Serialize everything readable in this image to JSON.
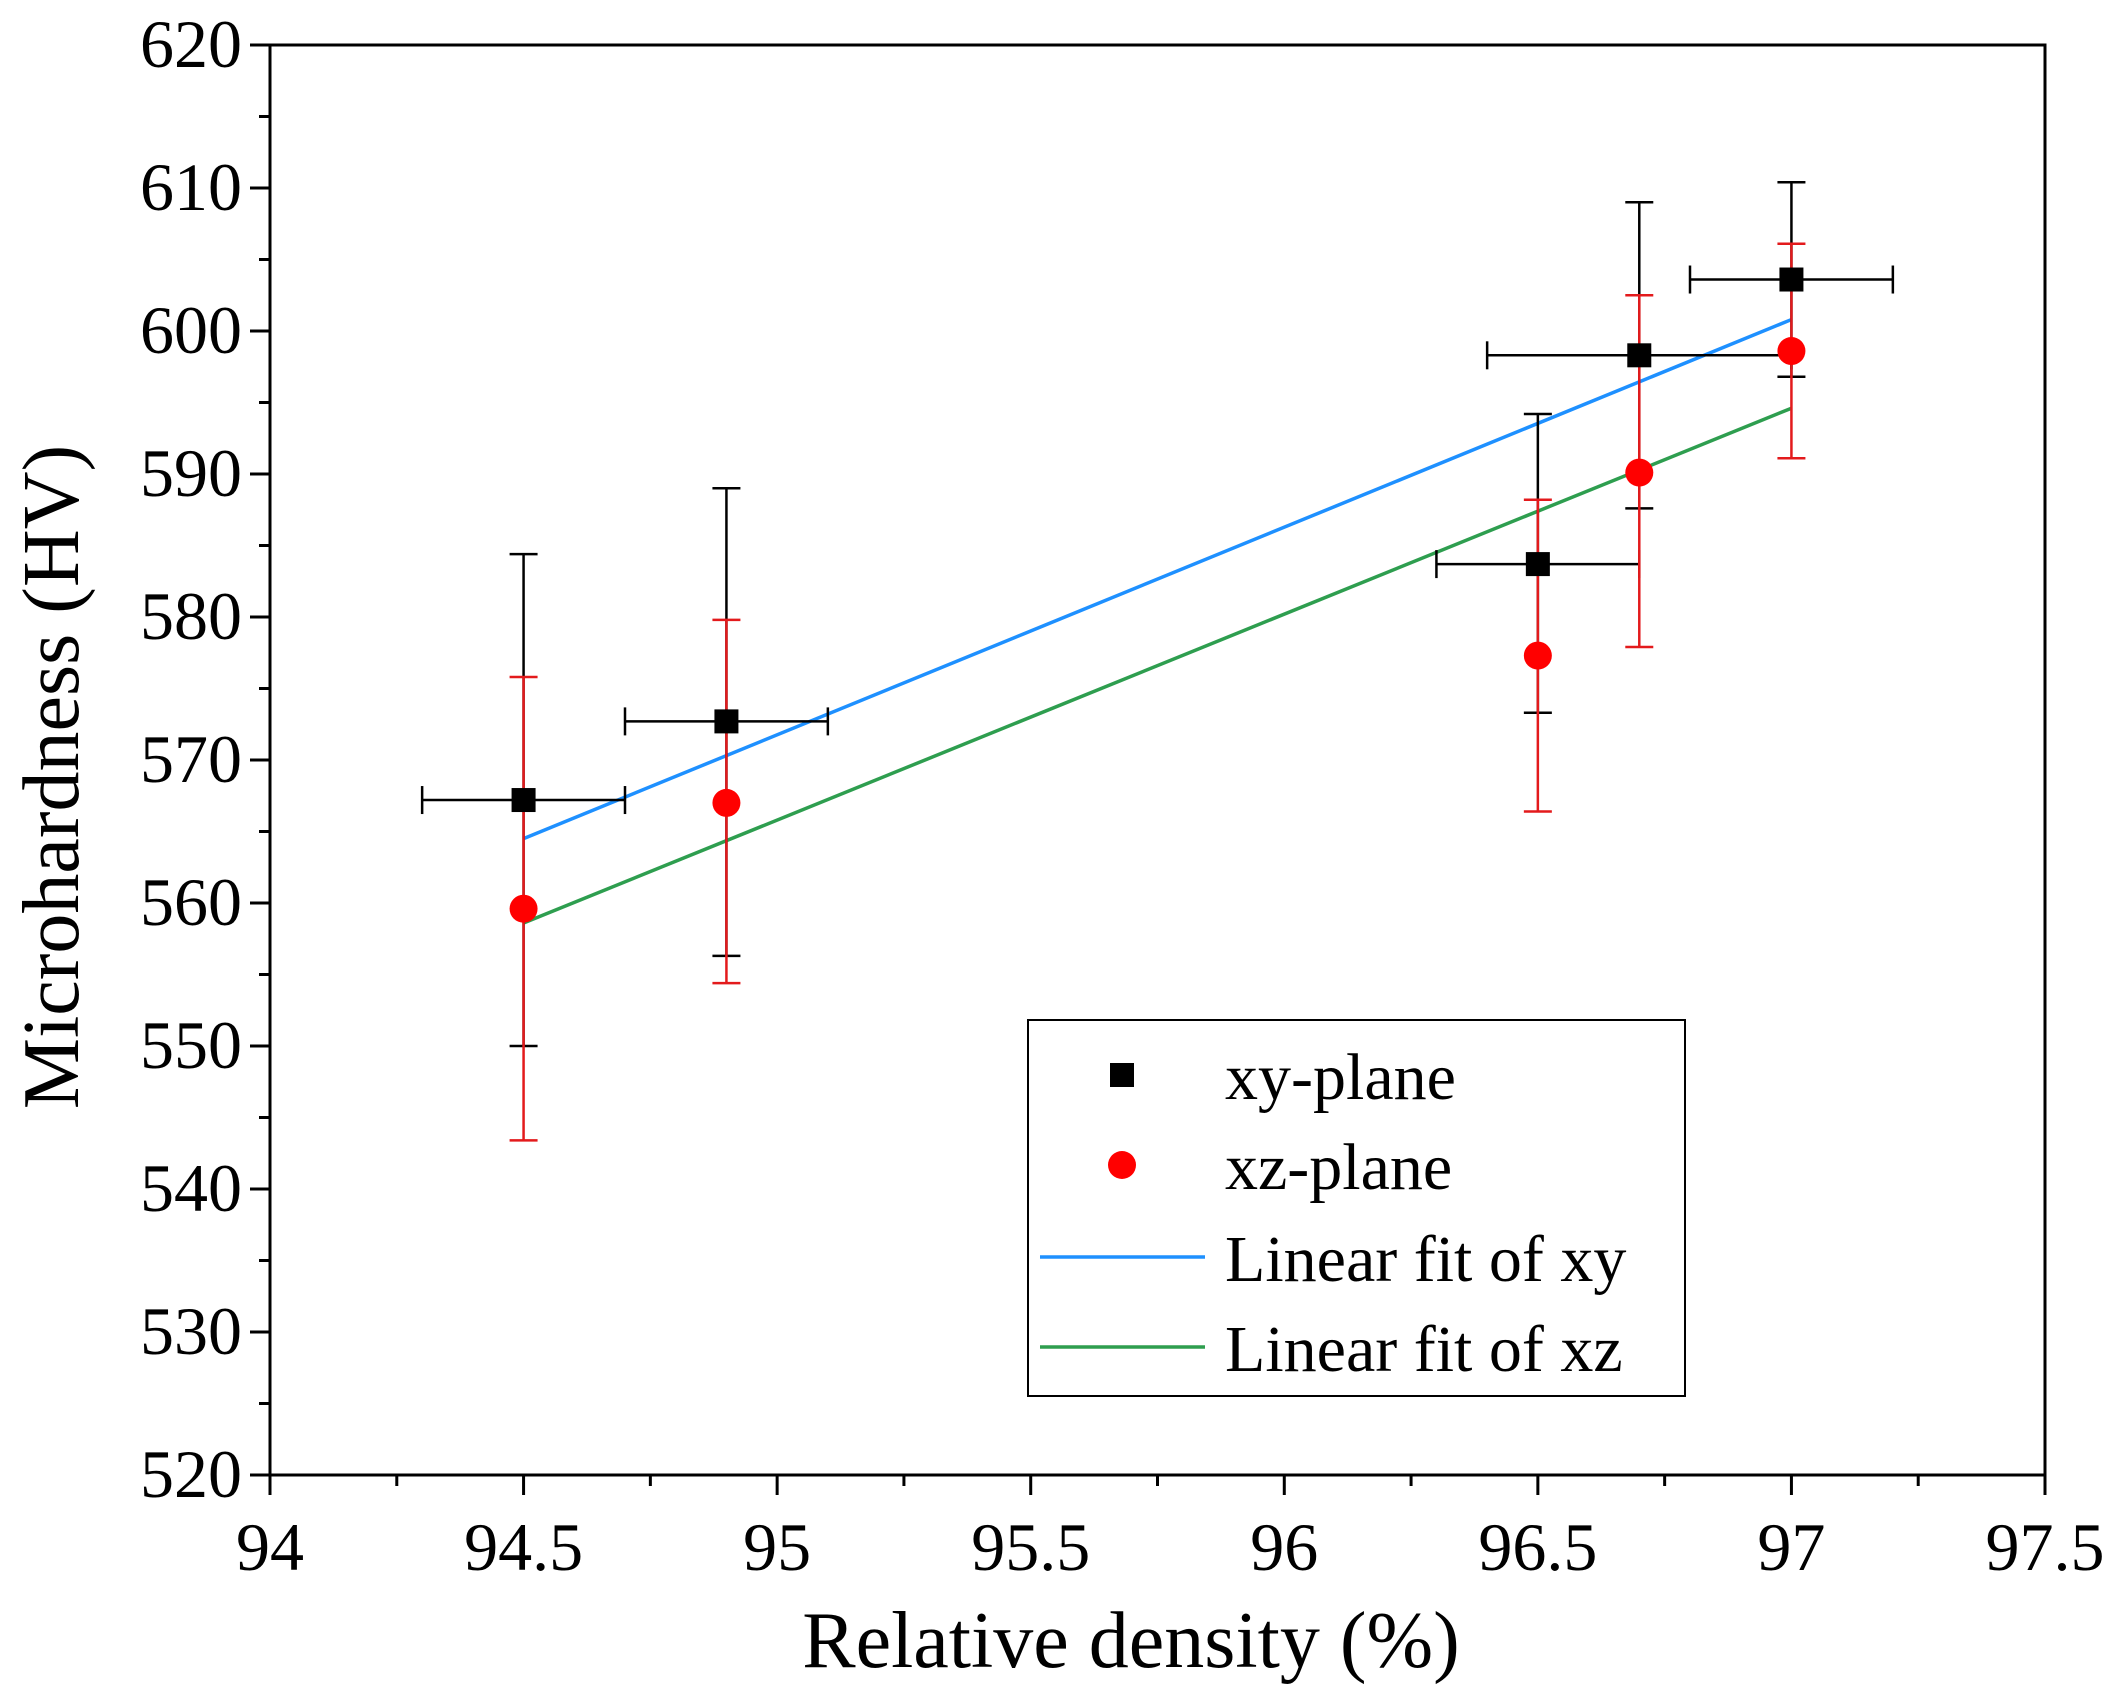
{
  "chart_data": {
    "type": "scatter",
    "title": "",
    "xlabel": "Relative density (%)",
    "ylabel": "Microhardness (HV)",
    "xlim": [
      94,
      97.5
    ],
    "ylim": [
      520,
      620
    ],
    "x_ticks": [
      "94",
      "94.5",
      "95",
      "95.5",
      "96",
      "96.5",
      "97",
      "97.5"
    ],
    "y_ticks": [
      "520",
      "530",
      "540",
      "550",
      "560",
      "570",
      "580",
      "590",
      "600",
      "610",
      "620"
    ],
    "series": [
      {
        "name": "xy-plane",
        "marker": "square",
        "color": "#000000",
        "x": [
          94.5,
          94.9,
          96.5,
          96.7,
          97.0
        ],
        "y": [
          567.2,
          572.7,
          583.7,
          598.3,
          603.6
        ],
        "y_err_low": [
          550.0,
          556.3,
          573.3,
          587.6,
          596.8
        ],
        "y_err_high": [
          584.4,
          589.0,
          594.2,
          609.0,
          610.4
        ],
        "x_err": [
          0.2,
          0.2,
          0.2,
          0.3,
          0.2
        ]
      },
      {
        "name": "xz-plane",
        "marker": "circle",
        "color": "#ff0000",
        "x": [
          94.5,
          94.9,
          96.5,
          96.7,
          97.0
        ],
        "y": [
          559.6,
          567.0,
          577.3,
          590.1,
          598.6
        ],
        "y_err_low": [
          543.4,
          554.4,
          566.4,
          577.9,
          591.1
        ],
        "y_err_high": [
          575.8,
          579.8,
          588.2,
          602.5,
          606.1
        ]
      },
      {
        "name": "Linear fit of xy",
        "type": "line",
        "color": "#1e90ff",
        "x": [
          94.5,
          97.0
        ],
        "y": [
          564.5,
          600.8
        ]
      },
      {
        "name": "Linear fit of xz",
        "type": "line",
        "color": "#2e9e4f",
        "x": [
          94.5,
          97.0
        ],
        "y": [
          558.6,
          594.6
        ]
      }
    ],
    "legend": {
      "position": "bottom-right",
      "entries": [
        "xy-plane",
        "xz-plane",
        "Linear fit of xy",
        "Linear fit of xz"
      ]
    }
  }
}
